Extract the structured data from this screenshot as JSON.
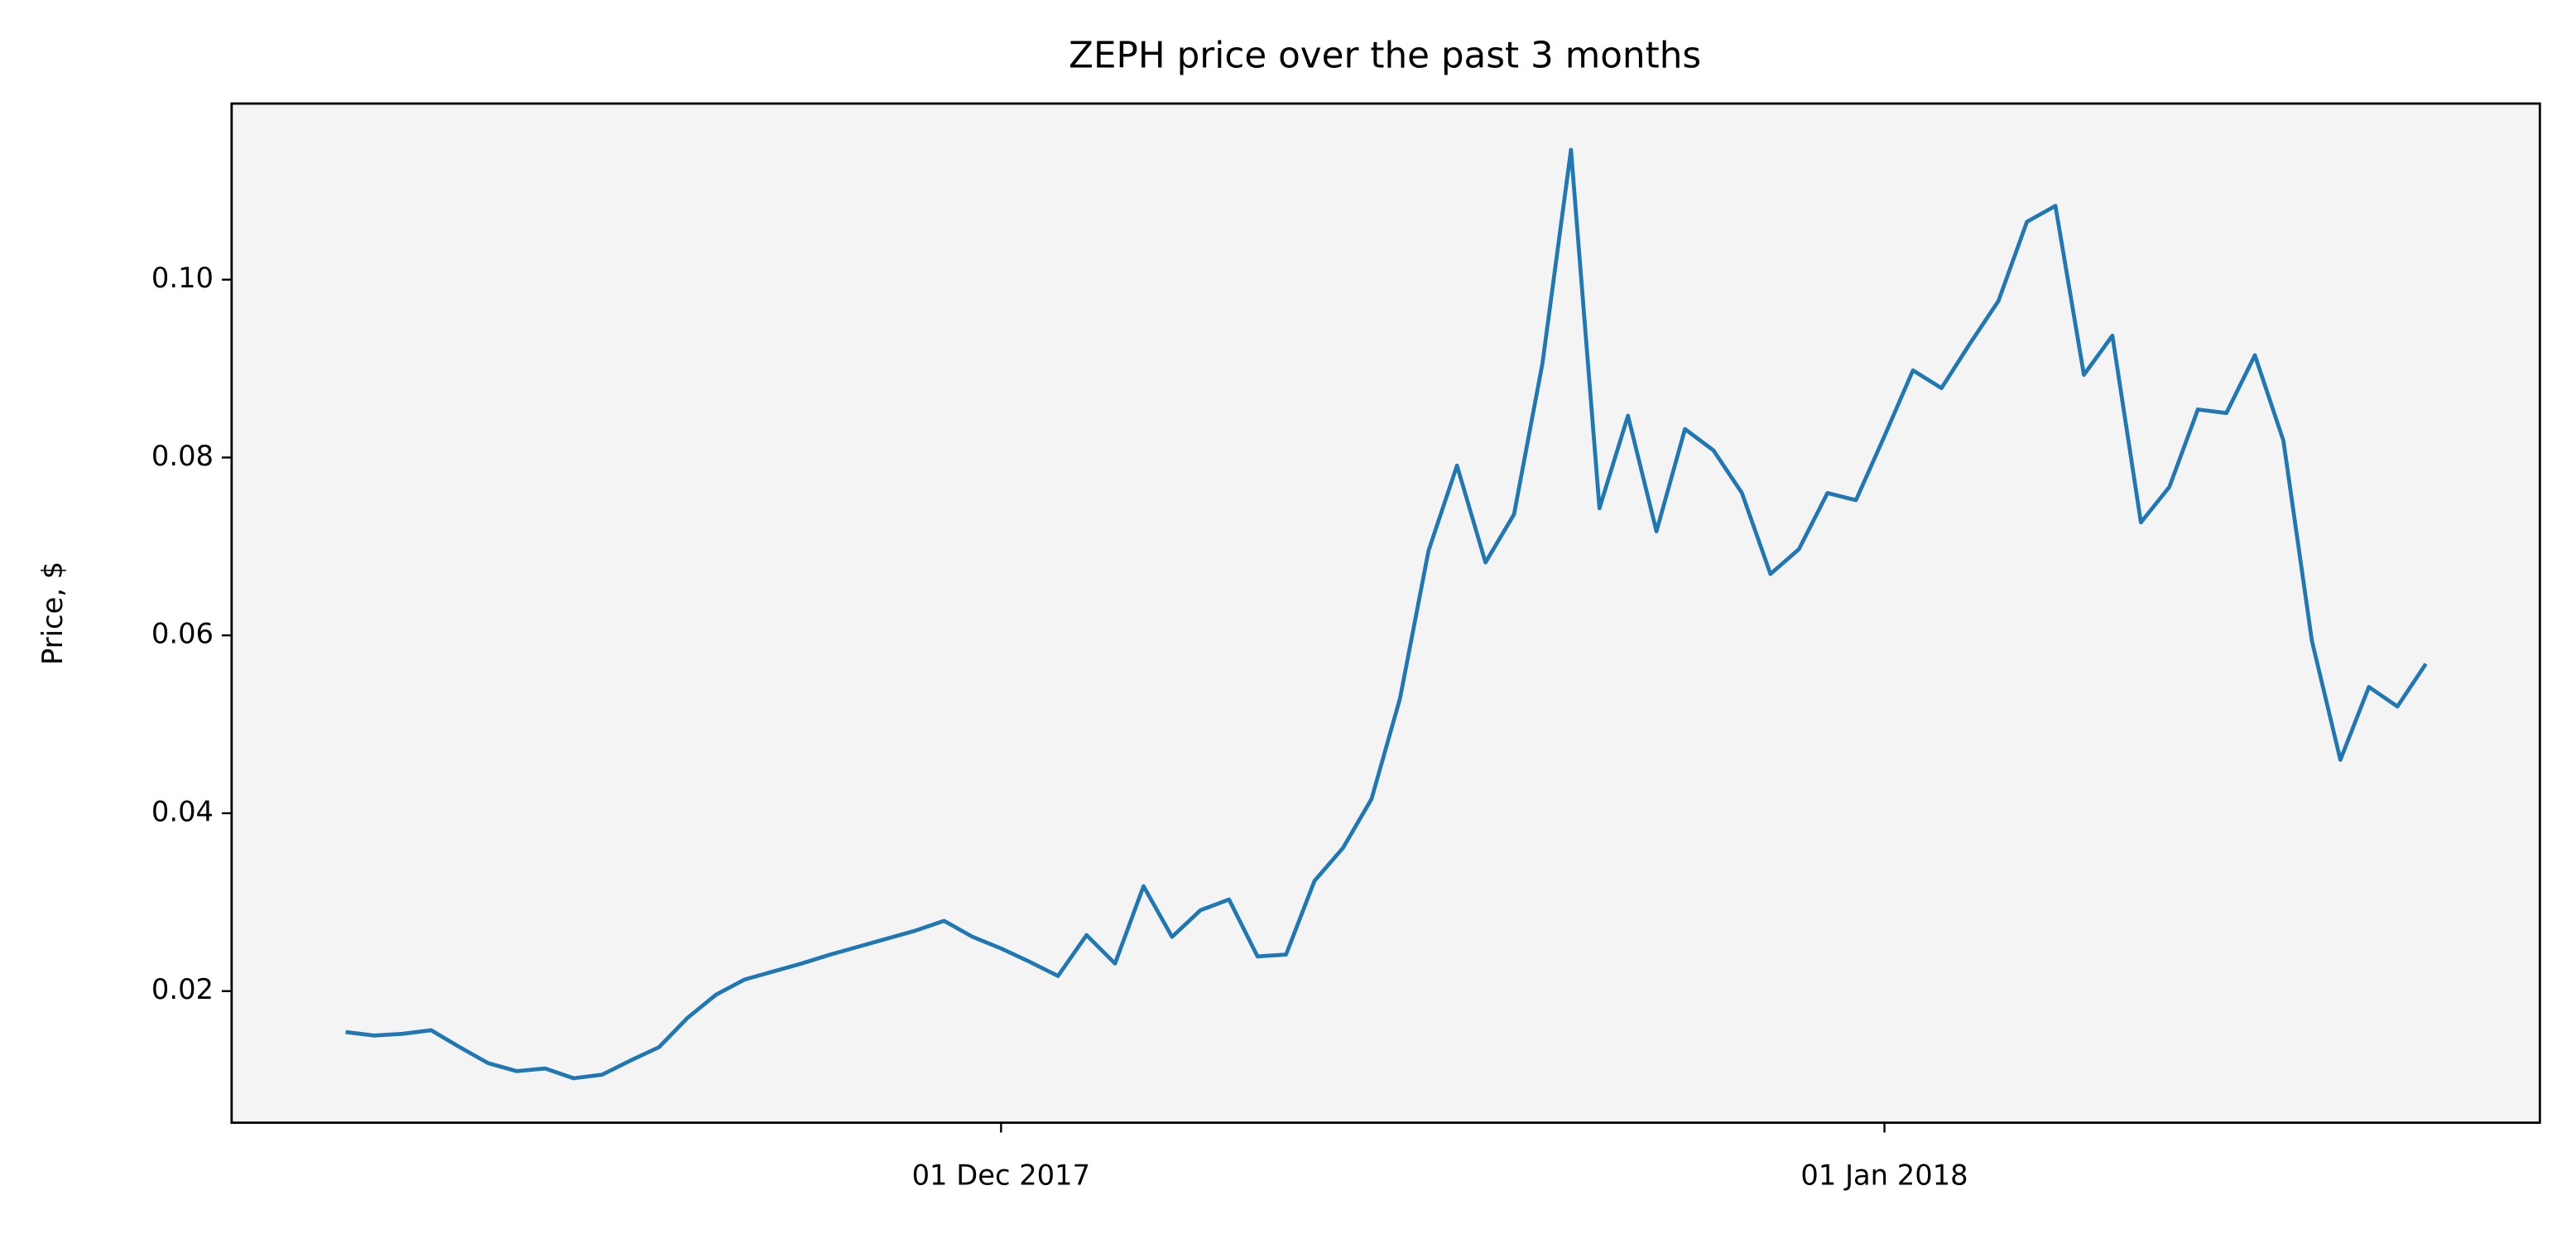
{
  "chart_data": {
    "type": "line",
    "title": "ZEPH price over the past 3 months",
    "y_label": "Price, $",
    "x": [
      "2017-11-08",
      "2017-11-09",
      "2017-11-10",
      "2017-11-11",
      "2017-11-12",
      "2017-11-13",
      "2017-11-14",
      "2017-11-15",
      "2017-11-16",
      "2017-11-17",
      "2017-11-18",
      "2017-11-19",
      "2017-11-20",
      "2017-11-21",
      "2017-11-22",
      "2017-11-23",
      "2017-11-24",
      "2017-11-25",
      "2017-11-26",
      "2017-11-27",
      "2017-11-28",
      "2017-11-29",
      "2017-11-30",
      "2017-12-01",
      "2017-12-02",
      "2017-12-03",
      "2017-12-04",
      "2017-12-05",
      "2017-12-06",
      "2017-12-07",
      "2017-12-08",
      "2017-12-09",
      "2017-12-10",
      "2017-12-11",
      "2017-12-12",
      "2017-12-13",
      "2017-12-14",
      "2017-12-15",
      "2017-12-16",
      "2017-12-17",
      "2017-12-18",
      "2017-12-19",
      "2017-12-20",
      "2017-12-21",
      "2017-12-22",
      "2017-12-23",
      "2017-12-24",
      "2017-12-25",
      "2017-12-26",
      "2017-12-27",
      "2017-12-28",
      "2017-12-29",
      "2017-12-30",
      "2017-12-31",
      "2018-01-01",
      "2018-01-02",
      "2018-01-03",
      "2018-01-04",
      "2018-01-05",
      "2018-01-06",
      "2018-01-07",
      "2018-01-08",
      "2018-01-09",
      "2018-01-10",
      "2018-01-11",
      "2018-01-12",
      "2018-01-13",
      "2018-01-14",
      "2018-01-15",
      "2018-01-16",
      "2018-01-17",
      "2018-01-18",
      "2018-01-19",
      "2018-01-20"
    ],
    "series": [
      {
        "name": "ZEPH",
        "color": "#1f77b4",
        "values": [
          0.0154,
          0.015,
          0.0152,
          0.0156,
          0.0137,
          0.0119,
          0.011,
          0.0113,
          0.0102,
          0.0106,
          0.0122,
          0.0137,
          0.017,
          0.0196,
          0.0213,
          0.0222,
          0.0231,
          0.0241,
          0.025,
          0.0259,
          0.0268,
          0.0279,
          0.0261,
          0.0248,
          0.0233,
          0.0217,
          0.0263,
          0.0231,
          0.0318,
          0.0261,
          0.0291,
          0.0303,
          0.0239,
          0.0241,
          0.0324,
          0.0361,
          0.0416,
          0.0529,
          0.0695,
          0.0791,
          0.0682,
          0.0736,
          0.0906,
          0.1146,
          0.0743,
          0.0847,
          0.0717,
          0.0832,
          0.0808,
          0.076,
          0.0669,
          0.0697,
          0.076,
          0.0752,
          0.0824,
          0.0898,
          0.0878,
          0.0928,
          0.0976,
          0.1065,
          0.1083,
          0.0893,
          0.0937,
          0.0727,
          0.0767,
          0.0854,
          0.085,
          0.0915,
          0.0819,
          0.0594,
          0.046,
          0.0542,
          0.052,
          0.0568
        ]
      }
    ],
    "xlim": [
      "2017-11-04",
      "2018-01-24"
    ],
    "xticks": [
      {
        "value": "2017-12-01",
        "label": "01 Dec 2017"
      },
      {
        "value": "2018-01-01",
        "label": "01 Jan 2018"
      }
    ],
    "ylim": [
      0.0052,
      0.1198
    ],
    "yticks": [
      0.02,
      0.04,
      0.06,
      0.08,
      {
        "value": 0.1,
        "label": "0.10"
      }
    ],
    "grid": false,
    "background": "#f4f4f4"
  }
}
